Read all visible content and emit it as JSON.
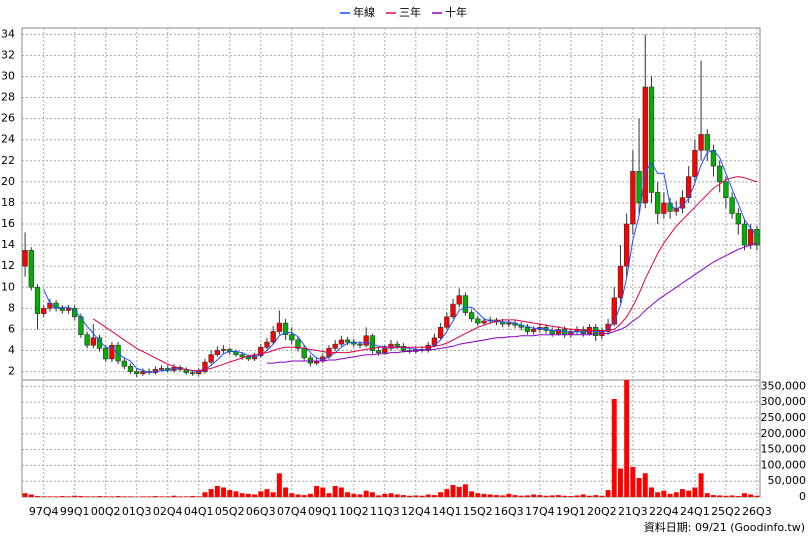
{
  "chart_data": {
    "type": "candlestick",
    "legend": "top",
    "grid": true,
    "footnote": "資料日期: 09/21 (Goodinfo.tw)",
    "up_color": "#ff0000",
    "down_color": "#00b000",
    "categories": [
      null,
      null,
      null,
      "97Q4",
      null,
      null,
      null,
      null,
      "99Q1",
      null,
      null,
      null,
      null,
      "00Q2",
      null,
      null,
      null,
      null,
      "01Q3",
      null,
      null,
      null,
      null,
      "02Q4",
      null,
      null,
      null,
      null,
      "04Q1",
      null,
      null,
      null,
      null,
      "05Q2",
      null,
      null,
      null,
      null,
      "06Q3",
      null,
      null,
      null,
      null,
      "07Q4",
      null,
      null,
      null,
      null,
      "09Q1",
      null,
      null,
      null,
      null,
      "10Q2",
      null,
      null,
      null,
      null,
      "11Q3",
      null,
      null,
      null,
      null,
      "12Q4",
      null,
      null,
      null,
      null,
      "14Q1",
      null,
      null,
      null,
      null,
      "15Q2",
      null,
      null,
      null,
      null,
      "16Q3",
      null,
      null,
      null,
      null,
      "17Q4",
      null,
      null,
      null,
      null,
      "19Q1",
      null,
      null,
      null,
      null,
      "20Q2",
      null,
      null,
      null,
      null,
      "21Q3",
      null,
      null,
      null,
      null,
      "22Q4",
      null,
      null,
      null,
      null,
      "24Q1",
      null,
      null,
      null,
      null,
      "25Q2",
      null,
      null,
      null,
      null,
      "26Q3"
    ],
    "open": [
      12,
      13.5,
      10,
      7.5,
      8,
      8.5,
      8,
      7.8,
      8,
      7.2,
      5.5,
      4.5,
      5.2,
      4.2,
      3.2,
      4.5,
      3,
      2.5,
      2,
      1.8,
      2,
      1.9,
      2.2,
      2.3,
      2.1,
      2.4,
      2.2,
      1.9,
      1.8,
      2,
      2.9,
      3.6,
      4,
      4.1,
      3.9,
      3.6,
      3.4,
      3.2,
      3.5,
      4.3,
      4.8,
      5.8,
      6.6,
      5.5,
      5,
      4.2,
      3.3,
      2.8,
      3,
      3.4,
      4.2,
      4.6,
      5,
      4.8,
      4.6,
      4.5,
      5.4,
      4,
      3.8,
      4.2,
      4.6,
      4.4,
      4,
      3.9,
      4.1,
      4,
      4.5,
      5.2,
      6.2,
      7.2,
      8.4,
      9.2,
      7.6,
      7,
      6.6,
      6.8,
      6.9,
      6.7,
      6.5,
      6.6,
      6.4,
      6.2,
      5.8,
      6,
      6.2,
      5.9,
      5.6,
      6,
      5.5,
      5.8,
      6,
      5.6,
      6.2,
      5.4,
      5.8,
      6.5,
      9,
      12,
      16,
      21,
      18,
      29,
      19,
      17,
      18,
      17.2,
      17.5,
      18.5,
      20.5,
      23,
      24.5,
      23,
      21.5,
      20,
      18.5,
      17,
      16,
      14,
      15.5
    ],
    "high": [
      15.2,
      13.8,
      10.3,
      8.3,
      8.9,
      8.8,
      8.3,
      8.3,
      8.3,
      7.5,
      5.8,
      6.5,
      5.5,
      4.5,
      4.8,
      4.8,
      3.3,
      2.8,
      2.3,
      2.3,
      2.3,
      2.5,
      2.6,
      2.6,
      2.7,
      2.6,
      2.4,
      2.1,
      2.3,
      3.2,
      4,
      4.4,
      4.5,
      4.3,
      4.1,
      3.8,
      3.6,
      3.8,
      4.6,
      5.2,
      6.3,
      7.8,
      7,
      6.2,
      5.3,
      4.5,
      3.6,
      3.3,
      3.7,
      4.5,
      5,
      5.4,
      5.3,
      5.1,
      4.9,
      6.2,
      5.6,
      4.3,
      4.5,
      5,
      4.9,
      4.7,
      4.2,
      4.4,
      4.4,
      4.8,
      5.6,
      6.6,
      7.6,
      8.9,
      9.9,
      9.5,
      7.9,
      7.3,
      7.1,
      7.2,
      7.1,
      7,
      6.9,
      6.9,
      6.7,
      6.5,
      6.3,
      6.6,
      6.5,
      6.2,
      6.3,
      6.3,
      6.1,
      6.3,
      6.3,
      6.5,
      6.5,
      6.2,
      7,
      10,
      14,
      17,
      23,
      26,
      34,
      30,
      20,
      19,
      18.5,
      18.2,
      19.2,
      21.5,
      24,
      31.5,
      25,
      23.5,
      22,
      20.5,
      19,
      17.5,
      16.5,
      16,
      15.8
    ],
    "low": [
      11,
      9.7,
      6,
      7.2,
      7.7,
      7.7,
      7.5,
      7.5,
      6.9,
      5.2,
      4.2,
      4.2,
      3.9,
      2.9,
      2.9,
      2.7,
      2.2,
      1.8,
      1.5,
      1.6,
      1.7,
      1.7,
      2,
      1.9,
      1.9,
      2,
      1.7,
      1.6,
      1.6,
      1.8,
      2.7,
      3.4,
      3.7,
      3.6,
      3.4,
      3.1,
      3,
      3,
      3.3,
      4.1,
      4.6,
      5.5,
      5,
      4.6,
      3.9,
      3,
      2.5,
      2.6,
      2.8,
      3.2,
      4,
      4.4,
      4.5,
      4.3,
      4.2,
      4.3,
      3.7,
      3.5,
      3.6,
      4,
      4.1,
      3.8,
      3.7,
      3.7,
      3.8,
      3.8,
      4.3,
      5,
      6,
      7,
      8.1,
      7.3,
      6.7,
      6.3,
      6.4,
      6.6,
      6.4,
      6.2,
      6.2,
      6.1,
      5.9,
      5.5,
      5.5,
      5.7,
      5.6,
      5.3,
      5.4,
      5.2,
      5.2,
      5.5,
      5.3,
      5.4,
      4.9,
      5.1,
      5.5,
      6.3,
      8.5,
      11,
      15,
      17,
      17.5,
      18,
      16,
      16.5,
      16.5,
      16.8,
      17,
      18,
      20,
      22,
      22,
      20.5,
      19,
      17.5,
      16.5,
      15,
      13.5,
      13.6,
      13.5
    ],
    "close": [
      13.5,
      10,
      7.5,
      8,
      8.5,
      8,
      7.8,
      8,
      7.2,
      5.5,
      4.5,
      5.2,
      4.2,
      3.2,
      4.5,
      3,
      2.5,
      2,
      1.8,
      2,
      1.9,
      2.2,
      2.3,
      2.1,
      2.4,
      2.2,
      1.9,
      1.8,
      2,
      2.9,
      3.6,
      4,
      4.1,
      3.9,
      3.6,
      3.4,
      3.2,
      3.5,
      4.3,
      4.8,
      5.8,
      6.6,
      5.5,
      5,
      4.2,
      3.3,
      2.8,
      3,
      3.4,
      4.2,
      4.6,
      5,
      4.8,
      4.6,
      4.5,
      5.4,
      4,
      3.8,
      4.2,
      4.6,
      4.4,
      4,
      3.9,
      4.1,
      4,
      4.5,
      5.2,
      6.2,
      7.2,
      8.4,
      9.2,
      7.6,
      7,
      6.6,
      6.8,
      6.9,
      6.7,
      6.5,
      6.6,
      6.4,
      6.2,
      5.8,
      6,
      6.2,
      5.9,
      5.6,
      6,
      5.5,
      5.8,
      6,
      5.6,
      6.2,
      5.4,
      5.8,
      6.5,
      9,
      12,
      16,
      21,
      18,
      29,
      19,
      17,
      18,
      17.2,
      17.5,
      18.5,
      20.5,
      23,
      24.5,
      23,
      21.5,
      20,
      18.5,
      17,
      16,
      14,
      15.5,
      14
    ],
    "series": [
      {
        "name": "年線",
        "color": "#1e50ff",
        "values": [
          null,
          null,
          null,
          9.8,
          8.5,
          8,
          8.1,
          8.1,
          7.8,
          7.1,
          6.3,
          5.6,
          4.9,
          4.3,
          4.3,
          3.7,
          3.3,
          3,
          2.3,
          2.1,
          1.9,
          2,
          2.1,
          2.1,
          2.3,
          2.3,
          2.2,
          2.1,
          2,
          2.2,
          2.6,
          3.1,
          3.7,
          3.9,
          3.9,
          3.8,
          3.5,
          3.4,
          3.6,
          4,
          4.6,
          5.4,
          5.7,
          5.7,
          5.3,
          4.5,
          3.8,
          3.3,
          3.1,
          3.4,
          3.8,
          4.3,
          4.7,
          4.8,
          4.7,
          4.8,
          4.6,
          4.4,
          4.4,
          4.2,
          4.3,
          4.3,
          4.2,
          4.1,
          4,
          4.1,
          4.5,
          5,
          5.8,
          6.8,
          7.8,
          8.1,
          8.1,
          7.6,
          7,
          6.8,
          6.8,
          6.7,
          6.7,
          6.6,
          6.4,
          6.3,
          6.1,
          6.1,
          6,
          5.9,
          5.9,
          5.8,
          5.7,
          5.8,
          5.7,
          5.9,
          5.8,
          5.8,
          6,
          6.7,
          8.3,
          10.9,
          14.5,
          16.8,
          21,
          21.8,
          20.8,
          20.8,
          17.8,
          17.4,
          17.8,
          18.4,
          19.9,
          21.6,
          22.8,
          23,
          22.3,
          20.8,
          19.3,
          17.9,
          16.4,
          15.6,
          14.9
        ]
      },
      {
        "name": "三年",
        "color": "#e0004a",
        "values": [
          null,
          null,
          null,
          null,
          null,
          null,
          null,
          null,
          null,
          null,
          null,
          7,
          6.6,
          6.2,
          5.8,
          5.4,
          5,
          4.6,
          4.2,
          3.9,
          3.6,
          3.3,
          3,
          2.7,
          2.5,
          2.3,
          2.2,
          2.1,
          2.1,
          2.2,
          2.3,
          2.5,
          2.7,
          2.9,
          3.1,
          3.3,
          3.5,
          3.6,
          3.7,
          3.8,
          4,
          4.2,
          4.3,
          4.3,
          4.3,
          4.2,
          4.1,
          4,
          3.9,
          3.8,
          3.8,
          3.8,
          3.8,
          3.9,
          4,
          4.1,
          4.2,
          4.3,
          4.3,
          4.3,
          4.3,
          4.3,
          4.3,
          4.3,
          4.3,
          4.3,
          4.4,
          4.5,
          4.7,
          5,
          5.3,
          5.6,
          5.9,
          6.2,
          6.4,
          6.6,
          6.8,
          6.9,
          6.9,
          6.9,
          6.8,
          6.7,
          6.6,
          6.5,
          6.4,
          6.3,
          6.2,
          6.1,
          6,
          6,
          5.9,
          5.9,
          5.9,
          5.9,
          5.9,
          6,
          6.5,
          7.2,
          8.2,
          9.4,
          10.8,
          12,
          13.2,
          14.2,
          15,
          15.8,
          16.4,
          17,
          17.6,
          18.2,
          18.8,
          19.4,
          19.8,
          20.2,
          20.4,
          20.5,
          20.4,
          20.2,
          20
        ]
      },
      {
        "name": "十年",
        "color": "#8a00c8",
        "values": [
          null,
          null,
          null,
          null,
          null,
          null,
          null,
          null,
          null,
          null,
          null,
          null,
          null,
          null,
          null,
          null,
          null,
          null,
          null,
          null,
          null,
          null,
          null,
          null,
          null,
          null,
          null,
          null,
          null,
          null,
          null,
          null,
          null,
          null,
          null,
          null,
          null,
          null,
          null,
          2.8,
          2.8,
          2.9,
          2.9,
          3,
          3,
          3,
          3,
          3,
          3,
          3.1,
          3.1,
          3.2,
          3.3,
          3.4,
          3.5,
          3.6,
          3.6,
          3.7,
          3.7,
          3.8,
          3.8,
          3.9,
          3.9,
          4,
          4,
          4.1,
          4.1,
          4.2,
          4.3,
          4.4,
          4.6,
          4.7,
          4.8,
          4.9,
          5,
          5.1,
          5.2,
          5.2,
          5.3,
          5.3,
          5.4,
          5.4,
          5.4,
          5.5,
          5.5,
          5.5,
          5.5,
          5.5,
          5.5,
          5.5,
          5.5,
          5.5,
          5.6,
          5.6,
          5.6,
          5.8,
          6,
          6.3,
          6.8,
          7.2,
          7.8,
          8.3,
          8.8,
          9.2,
          9.6,
          10,
          10.4,
          10.8,
          11.2,
          11.6,
          12,
          12.4,
          12.7,
          13,
          13.3,
          13.6,
          13.8,
          14,
          14.2
        ]
      }
    ],
    "ylim": [
      1.2,
      34.6
    ],
    "yticks": [
      2,
      4,
      6,
      8,
      10,
      12,
      14,
      16,
      18,
      20,
      22,
      24,
      26,
      28,
      30,
      32,
      34
    ],
    "volume": {
      "color": "#ff0000",
      "values": [
        12000,
        8000,
        3000,
        2000,
        2000,
        2000,
        3000,
        2000,
        4000,
        3000,
        2000,
        2000,
        3000,
        2000,
        2000,
        3000,
        2000,
        2000,
        1000,
        2000,
        2000,
        3000,
        2000,
        2000,
        4000,
        2000,
        2000,
        3000,
        2000,
        15000,
        25000,
        35000,
        30000,
        22000,
        18000,
        12000,
        10000,
        8000,
        18000,
        25000,
        15000,
        75000,
        30000,
        12000,
        8000,
        6000,
        10000,
        35000,
        30000,
        12000,
        35000,
        30000,
        15000,
        10000,
        8000,
        20000,
        15000,
        5000,
        10000,
        12000,
        8000,
        6000,
        4000,
        5000,
        4000,
        8000,
        6000,
        15000,
        25000,
        38000,
        32000,
        40000,
        18000,
        12000,
        10000,
        8000,
        6000,
        5000,
        10000,
        6000,
        4000,
        5000,
        8000,
        6000,
        4000,
        5000,
        6000,
        4000,
        3000,
        5000,
        8000,
        4000,
        6000,
        4000,
        22000,
        310000,
        90000,
        370000,
        95000,
        60000,
        75000,
        30000,
        15000,
        20000,
        10000,
        15000,
        25000,
        20000,
        30000,
        75000,
        12000,
        6000,
        5000,
        4000,
        5000,
        3000,
        12000,
        8000,
        4000
      ],
      "ylim": [
        0,
        370000
      ],
      "yticks": [
        0,
        {
          "value": 50000,
          "label": "50,000"
        },
        {
          "value": 100000,
          "label": "100,000"
        },
        {
          "value": 150000,
          "label": "150,000"
        },
        {
          "value": 200000,
          "label": "200,000"
        },
        {
          "value": 250000,
          "label": "250,000"
        },
        {
          "value": 300000,
          "label": "300,000"
        },
        {
          "value": 350000,
          "label": "350,000"
        }
      ]
    }
  }
}
